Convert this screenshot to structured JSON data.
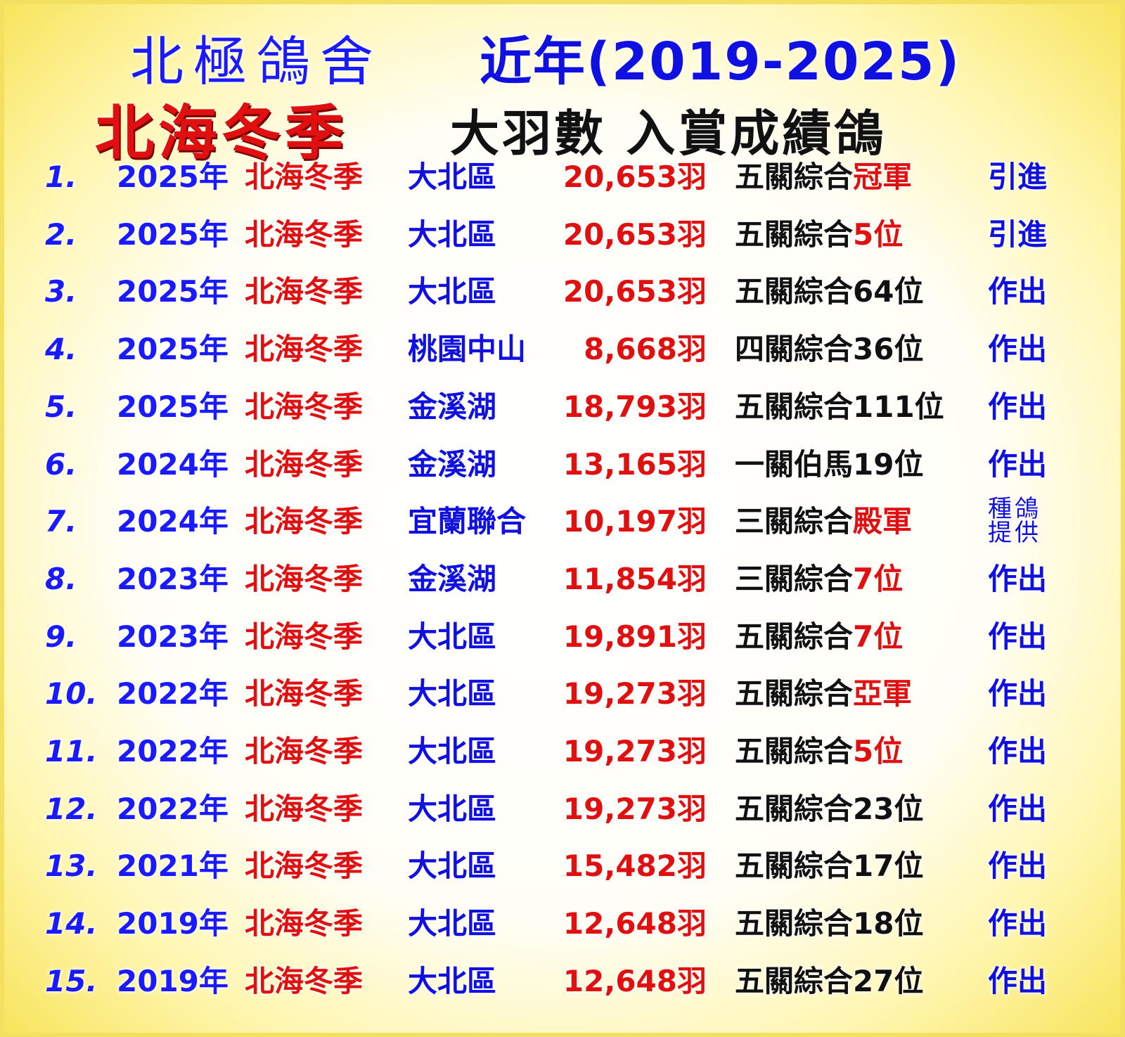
{
  "header": {
    "shop_name": "北極鴿舍",
    "period": "近年(2019-2025)",
    "event_title": "北海冬季",
    "subtitle": "大羽數 入賞成績鴿"
  },
  "colors": {
    "blue": "#1010e0",
    "red": "#e01010",
    "black": "#111111",
    "background_edge": "#f7e45a"
  },
  "rows": [
    {
      "num": "1.",
      "year": "2025年",
      "event": "北海冬季",
      "region": "大北區",
      "birds": "20,653羽",
      "result_prefix": "五關綜合",
      "result_highlight": "冠軍",
      "action": "引進"
    },
    {
      "num": "2.",
      "year": "2025年",
      "event": "北海冬季",
      "region": "大北區",
      "birds": "20,653羽",
      "result_prefix": "五關綜合",
      "result_highlight": "5位",
      "action": "引進"
    },
    {
      "num": "3.",
      "year": "2025年",
      "event": "北海冬季",
      "region": "大北區",
      "birds": "20,653羽",
      "result_prefix": "五關綜合64位",
      "result_highlight": "",
      "action": "作出"
    },
    {
      "num": "4.",
      "year": "2025年",
      "event": "北海冬季",
      "region": "桃園中山",
      "birds": "8,668羽",
      "result_prefix": "四關綜合36位",
      "result_highlight": "",
      "action": "作出"
    },
    {
      "num": "5.",
      "year": "2025年",
      "event": "北海冬季",
      "region": "金溪湖",
      "birds": "18,793羽",
      "result_prefix": "五關綜合111位",
      "result_highlight": "",
      "action": "作出"
    },
    {
      "num": "6.",
      "year": "2024年",
      "event": "北海冬季",
      "region": "金溪湖",
      "birds": "13,165羽",
      "result_prefix": "一關伯馬19位",
      "result_highlight": "",
      "action": "作出"
    },
    {
      "num": "7.",
      "year": "2024年",
      "event": "北海冬季",
      "region": "宜蘭聯合",
      "birds": "10,197羽",
      "result_prefix": "三關綜合",
      "result_highlight": "殿軍",
      "action": "種鴿提供"
    },
    {
      "num": "8.",
      "year": "2023年",
      "event": "北海冬季",
      "region": "金溪湖",
      "birds": "11,854羽",
      "result_prefix": "三關綜合",
      "result_highlight": "7位",
      "action": "作出"
    },
    {
      "num": "9.",
      "year": "2023年",
      "event": "北海冬季",
      "region": "大北區",
      "birds": "19,891羽",
      "result_prefix": "五關綜合",
      "result_highlight": "7位",
      "action": "作出"
    },
    {
      "num": "10.",
      "year": "2022年",
      "event": "北海冬季",
      "region": "大北區",
      "birds": "19,273羽",
      "result_prefix": "五關綜合",
      "result_highlight": "亞軍",
      "action": "作出"
    },
    {
      "num": "11.",
      "year": "2022年",
      "event": "北海冬季",
      "region": "大北區",
      "birds": "19,273羽",
      "result_prefix": "五關綜合",
      "result_highlight": "5位",
      "action": "作出"
    },
    {
      "num": "12.",
      "year": "2022年",
      "event": "北海冬季",
      "region": "大北區",
      "birds": "19,273羽",
      "result_prefix": "五關綜合23位",
      "result_highlight": "",
      "action": "作出"
    },
    {
      "num": "13.",
      "year": "2021年",
      "event": "北海冬季",
      "region": "大北區",
      "birds": "15,482羽",
      "result_prefix": "五關綜合17位",
      "result_highlight": "",
      "action": "作出"
    },
    {
      "num": "14.",
      "year": "2019年",
      "event": "北海冬季",
      "region": "大北區",
      "birds": "12,648羽",
      "result_prefix": "五關綜合18位",
      "result_highlight": "",
      "action": "作出"
    },
    {
      "num": "15.",
      "year": "2019年",
      "event": "北海冬季",
      "region": "大北區",
      "birds": "12,648羽",
      "result_prefix": "五關綜合27位",
      "result_highlight": "",
      "action": "作出"
    }
  ]
}
